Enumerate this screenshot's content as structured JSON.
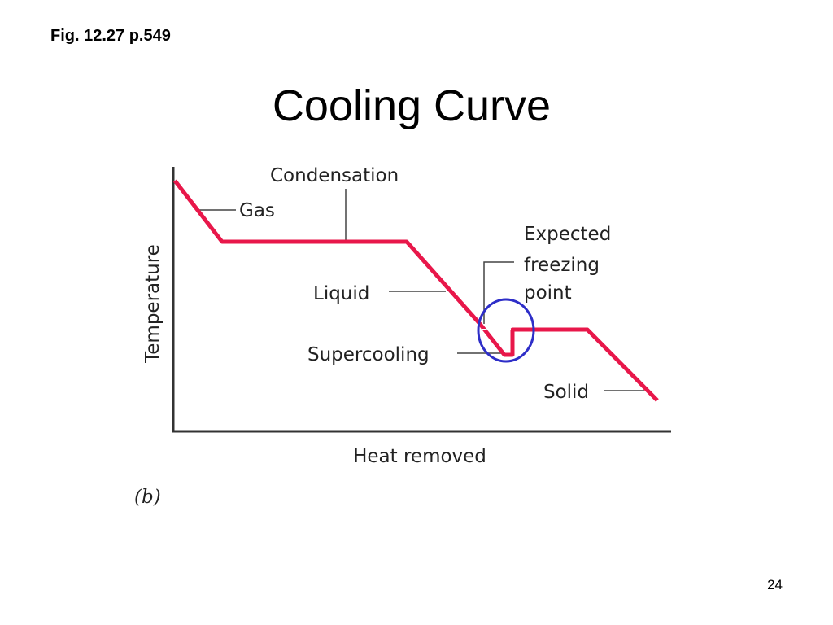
{
  "header": {
    "reference": "Fig. 12.27 p.549",
    "title": "Cooling Curve"
  },
  "diagram": {
    "y_axis_label": "Temperature",
    "x_axis_label": "Heat removed",
    "labels": {
      "condensation": "Condensation",
      "gas": "Gas",
      "liquid": "Liquid",
      "supercooling": "Supercooling",
      "solid": "Solid",
      "expected_freezing_point": [
        "Expected",
        "freezing",
        "point"
      ]
    },
    "caption": "(b)"
  },
  "footer": {
    "page_number": "24"
  }
}
